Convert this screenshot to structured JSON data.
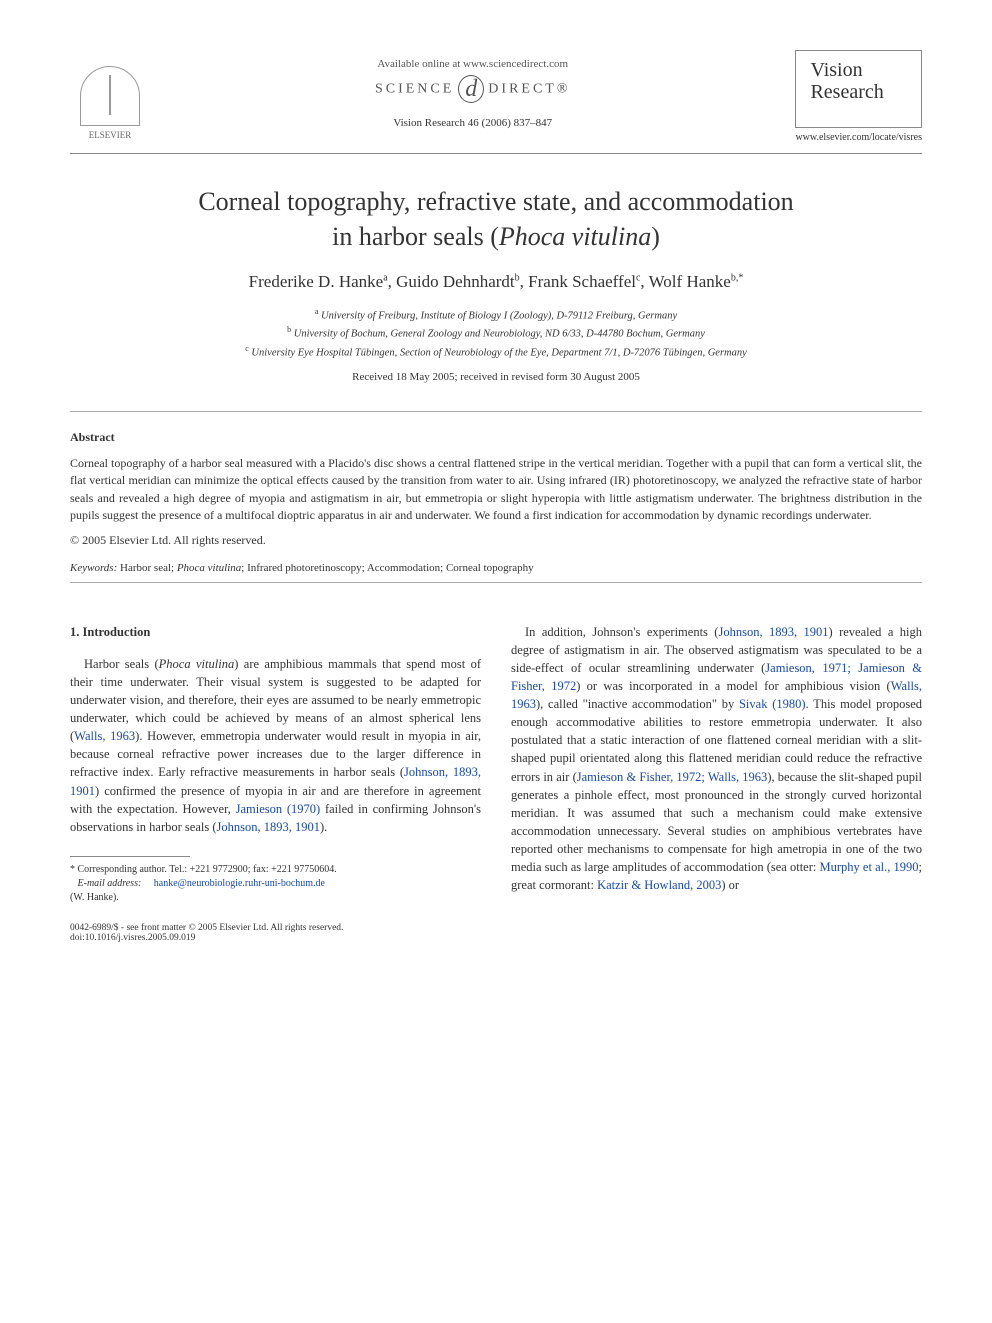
{
  "header": {
    "publisher_name": "ELSEVIER",
    "available_online": "Available online at www.sciencedirect.com",
    "sciencedirect_left": "SCIENCE",
    "sciencedirect_right": "DIRECT®",
    "journal_ref": "Vision Research 46 (2006) 837–847",
    "journal_box_line1": "Vision",
    "journal_box_line2": "Research",
    "journal_url": "www.elsevier.com/locate/visres"
  },
  "title_line1": "Corneal topography, refractive state, and accommodation",
  "title_line2_pre": "in harbor seals (",
  "title_species": "Phoca vitulina",
  "title_line2_post": ")",
  "authors": {
    "a1": "Frederike D. Hanke",
    "a1_sup": "a",
    "a2": "Guido Dehnhardt",
    "a2_sup": "b",
    "a3": "Frank Schaeffel",
    "a3_sup": "c",
    "a4": "Wolf Hanke",
    "a4_sup": "b,*"
  },
  "affiliations": {
    "a": "University of Freiburg, Institute of Biology I (Zoology), D-79112 Freiburg, Germany",
    "b": "University of Bochum, General Zoology and Neurobiology, ND 6/33, D-44780 Bochum, Germany",
    "c": "University Eye Hospital Tübingen, Section of Neurobiology of the Eye, Department 7/1, D-72076 Tübingen, Germany"
  },
  "dates": "Received 18 May 2005; received in revised form 30 August 2005",
  "abstract_label": "Abstract",
  "abstract_text": "Corneal topography of a harbor seal measured with a Placido's disc shows a central flattened stripe in the vertical meridian. Together with a pupil that can form a vertical slit, the flat vertical meridian can minimize the optical effects caused by the transition from water to air. Using infrared (IR) photoretinoscopy, we analyzed the refractive state of harbor seals and revealed a high degree of myopia and astigmatism in air, but emmetropia or slight hyperopia with little astigmatism underwater. The brightness distribution in the pupils suggest the presence of a multifocal dioptric apparatus in air and underwater. We found a first indication for accommodation by dynamic recordings underwater.",
  "copyright": "© 2005 Elsevier Ltd. All rights reserved.",
  "keywords_label": "Keywords:",
  "keywords_pre": " Harbor seal; ",
  "keywords_species": "Phoca vitulina",
  "keywords_post": "; Infrared photoretinoscopy; Accommodation; Corneal topography",
  "intro_heading": "1. Introduction",
  "col1_p1_a": "Harbor seals (",
  "col1_p1_sp": "Phoca vitulina",
  "col1_p1_b": ") are amphibious mammals that spend most of their time underwater. Their visual system is suggested to be adapted for underwater vision, and therefore, their eyes are assumed to be nearly emmetropic underwater, which could be achieved by means of an almost spherical lens (",
  "col1_c1": "Walls, 1963",
  "col1_p1_c": "). However, emmetropia underwater would result in myopia in air, because corneal refractive power increases due to the larger difference in refractive index. Early refractive measurements in harbor seals (",
  "col1_c2": "Johnson, 1893, 1901",
  "col1_p1_d": ") confirmed the presence of myopia in air and are therefore in agreement with the expectation. However, ",
  "col1_c3": "Jamieson (1970)",
  "col1_p1_e": " failed in confirming Johnson's observations in harbor seals (",
  "col1_c4": "Johnson, 1893, 1901",
  "col1_p1_f": ").",
  "col2_p1_a": "In addition, Johnson's experiments (",
  "col2_c1": "Johnson, 1893, 1901",
  "col2_p1_b": ") revealed a high degree of astigmatism in air. The observed astigmatism was speculated to be a side-effect of ocular streamlining underwater (",
  "col2_c2": "Jamieson, 1971; Jamieson & Fisher, 1972",
  "col2_p1_c": ") or was incorporated in a model for amphibious vision (",
  "col2_c3": "Walls, 1963",
  "col2_p1_d": "), called \"inactive accommodation\" by ",
  "col2_c4": "Sivak (1980)",
  "col2_p1_e": ". This model proposed enough accommodative abilities to restore emmetropia underwater. It also postulated that a static interaction of one flattened corneal meridian with a slit-shaped pupil orientated along this flattened meridian could reduce the refractive errors in air (",
  "col2_c5": "Jamieson & Fisher, 1972; Walls, 1963",
  "col2_p1_f": "), because the slit-shaped pupil generates a pinhole effect, most pronounced in the strongly curved horizontal meridian. It was assumed that such a mechanism could make extensive accommodation unnecessary. Several studies on amphibious vertebrates have reported other mechanisms to compensate for high ametropia in one of the two media such as large amplitudes of accommodation (sea otter: ",
  "col2_c6": "Murphy et al., 1990",
  "col2_p1_g": "; great cormorant: ",
  "col2_c7": "Katzir & Howland, 2003",
  "col2_p1_h": ") or",
  "footnote_star": "*",
  "footnote_corr": " Corresponding author. Tel.: +221 9772900; fax: +221 97750604.",
  "footnote_email_label": "E-mail address:",
  "footnote_email": "hanke@neurobiologie.ruhr-uni-bochum.de",
  "footnote_who": "(W. Hanke).",
  "footer_issn": "0042-6989/$ - see front matter © 2005 Elsevier Ltd. All rights reserved.",
  "footer_doi": "doi:10.1016/j.visres.2005.09.019"
}
